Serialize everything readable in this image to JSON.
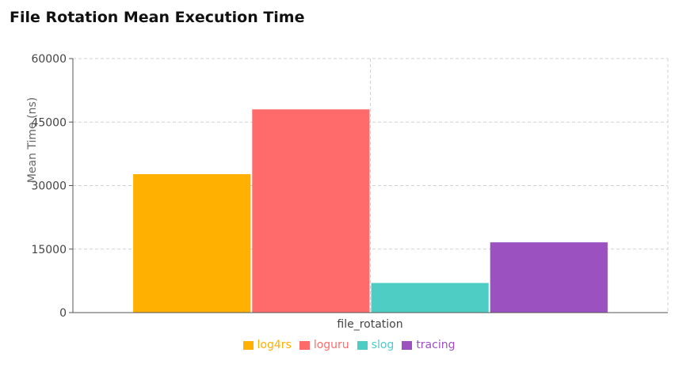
{
  "chart_data": {
    "type": "bar",
    "title": "File Rotation Mean Execution Time",
    "xlabel": "file_rotation",
    "ylabel": "Mean Time (ns)",
    "categories": [
      "file_rotation"
    ],
    "ylim": [
      0,
      60000
    ],
    "yticks": [
      0,
      15000,
      30000,
      45000,
      60000
    ],
    "grid": true,
    "legend_position": "bottom-center",
    "series": [
      {
        "name": "log4rs",
        "values": [
          32700
        ],
        "color": "#FFB000"
      },
      {
        "name": "loguru",
        "values": [
          48000
        ],
        "color": "#FF6B6B"
      },
      {
        "name": "slog",
        "values": [
          7000
        ],
        "color": "#4ECDC4"
      },
      {
        "name": "tracing",
        "values": [
          16600
        ],
        "color": "#9B51BF"
      }
    ]
  }
}
